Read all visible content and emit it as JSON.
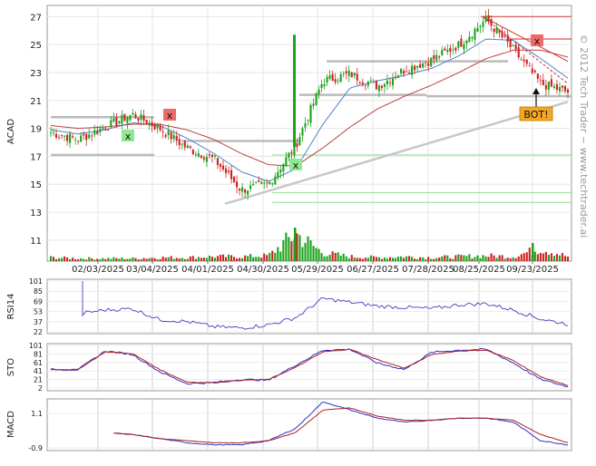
{
  "watermark": "© 2012 Tech Trader ~ www.techtrader.ai",
  "colors": {
    "up": "#1aa31a",
    "down": "#cc2222",
    "ma_blue": "#4a86c8",
    "ma_red": "#c04040",
    "support_gray": "#b0b0b0",
    "support_green": "#90e090",
    "resistance_red": "#d83030",
    "osc_blue": "#3030c0",
    "osc_red": "#b02020",
    "sell_marker": "#ee6a6a",
    "buy_marker": "#90e890",
    "bot_badge": "#f5a623"
  },
  "main_panel": {
    "ylabel": "ACAD",
    "yticks": [
      "27",
      "25",
      "23",
      "21",
      "19",
      "17",
      "15",
      "13",
      "11"
    ],
    "xticks": [
      "02/03/2025",
      "03/04/2025",
      "04/01/2025",
      "04/30/2025",
      "05/29/2025",
      "06/27/2025",
      "07/28/2025",
      "08/25/2025",
      "09/23/2025"
    ],
    "marker_x": "x",
    "bot_label": "BOT!"
  },
  "rsi_panel": {
    "label": "RSI14",
    "yticks": [
      "101",
      "85",
      "69",
      "53",
      "37",
      "22"
    ]
  },
  "sto_panel": {
    "label": "STO",
    "yticks": [
      "101",
      "81",
      "61",
      "41",
      "21",
      "2"
    ]
  },
  "macd_panel": {
    "label": "MACD",
    "yticks": [
      "1.1",
      "-0.9"
    ]
  },
  "chart_data": {
    "type": "candlestick",
    "ylabel": "ACAD",
    "ylim": [
      9.5,
      27.8
    ],
    "x": [
      "01/09/2025",
      "01/21/2025",
      "02/03/2025",
      "02/18/2025",
      "03/04/2025",
      "03/18/2025",
      "04/01/2025",
      "04/15/2025",
      "04/30/2025",
      "05/14/2025",
      "05/29/2025",
      "06/12/2025",
      "06/27/2025",
      "07/14/2025",
      "07/28/2025",
      "08/11/2025",
      "08/25/2025",
      "09/08/2025",
      "09/23/2025",
      "10/03/2025"
    ],
    "close": [
      18.7,
      18.2,
      19.1,
      20.0,
      19.0,
      17.6,
      16.8,
      14.6,
      15.0,
      17.8,
      22.4,
      22.9,
      22.0,
      23.2,
      23.9,
      25.0,
      26.8,
      24.6,
      22.2,
      21.6
    ],
    "ma_short": [
      18.9,
      18.6,
      18.9,
      19.4,
      19.2,
      18.3,
      17.2,
      15.9,
      15.2,
      16.1,
      19.3,
      21.9,
      22.4,
      22.8,
      23.3,
      24.2,
      25.4,
      25.3,
      24.0,
      22.6
    ],
    "ma_long": [
      19.2,
      19.0,
      19.1,
      19.3,
      19.3,
      18.9,
      18.2,
      17.2,
      16.4,
      16.3,
      17.6,
      19.1,
      20.4,
      21.3,
      22.1,
      23.0,
      24.0,
      24.6,
      24.6,
      24.1
    ],
    "volume": [
      4,
      3,
      3,
      3,
      4,
      4,
      5,
      5,
      6,
      30,
      9,
      5,
      4,
      5,
      4,
      5,
      6,
      5,
      14,
      5
    ],
    "rsi14": [
      54,
      50,
      56,
      58,
      41,
      38,
      30,
      28,
      33,
      44,
      74,
      68,
      62,
      60,
      58,
      64,
      66,
      56,
      42,
      34
    ],
    "sto_k": [
      45,
      45,
      88,
      80,
      40,
      12,
      15,
      22,
      20,
      55,
      90,
      92,
      60,
      45,
      85,
      90,
      92,
      60,
      22,
      5
    ],
    "sto_d": [
      45,
      45,
      86,
      82,
      45,
      16,
      14,
      20,
      22,
      50,
      86,
      92,
      68,
      48,
      80,
      88,
      90,
      66,
      28,
      8
    ],
    "macd": [
      -0.2,
      -0.1,
      -0.2,
      -0.3,
      -0.5,
      -0.7,
      -0.8,
      -0.8,
      -0.6,
      0.0,
      1.3,
      0.9,
      0.5,
      0.3,
      0.4,
      0.5,
      0.5,
      0.3,
      -0.6,
      -0.8
    ],
    "macd_signal": [
      -0.3,
      -0.2,
      -0.2,
      -0.3,
      -0.5,
      -0.6,
      -0.7,
      -0.7,
      -0.6,
      -0.2,
      0.9,
      1.0,
      0.6,
      0.4,
      0.4,
      0.5,
      0.5,
      0.4,
      -0.3,
      -0.7
    ]
  }
}
